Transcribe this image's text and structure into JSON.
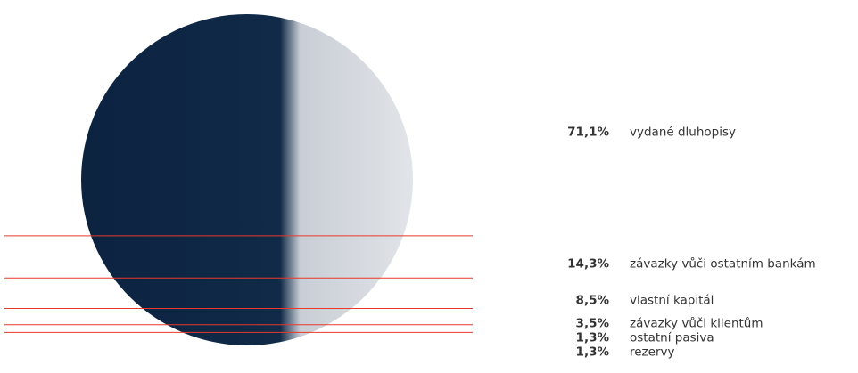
{
  "chart_data": {
    "type": "segment",
    "categories": [
      "vydané dluhopisy",
      "závazky vůči ostatním bankám",
      "vlastní kapitál",
      "závazky vůči klientům",
      "ostatní pasiva",
      "rezervy"
    ],
    "values": [
      71.1,
      14.3,
      8.5,
      3.5,
      1.3,
      1.3
    ],
    "value_labels": [
      "71,1%",
      "14,3%",
      "8,5%",
      "3,5%",
      "1,3%",
      "1,3%"
    ],
    "color": "#e8392b"
  }
}
